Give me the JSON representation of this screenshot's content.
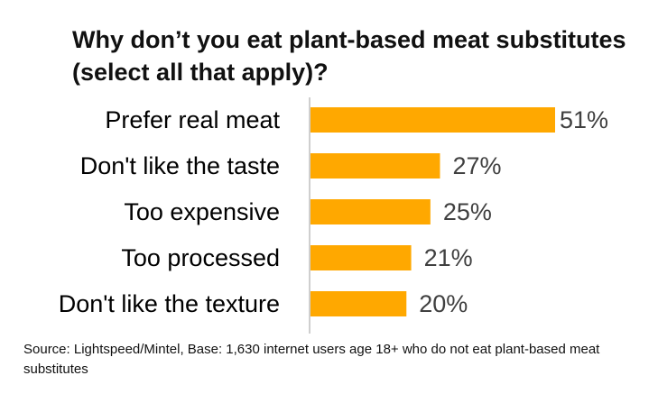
{
  "chart_data": {
    "type": "bar",
    "orientation": "horizontal",
    "title": "Why don’t you eat plant-based meat substitutes (select all that apply)?",
    "categories": [
      "Prefer real meat",
      "Don't like the taste",
      "Too expensive",
      "Too processed",
      "Don't like the texture"
    ],
    "values": [
      51,
      27,
      25,
      21,
      20
    ],
    "value_labels": [
      "51%",
      "27%",
      "25%",
      "21%",
      "20%"
    ],
    "unit": "%",
    "xlim": [
      0,
      51
    ],
    "grid": false,
    "legend": "none",
    "bar_color": "#FFA800",
    "axis_color": "#BFBFBF"
  },
  "footer": {
    "source": "Source: Lightspeed/Mintel, Base: 1,630 internet users age 18+ who do not eat plant-based meat substitutes"
  }
}
